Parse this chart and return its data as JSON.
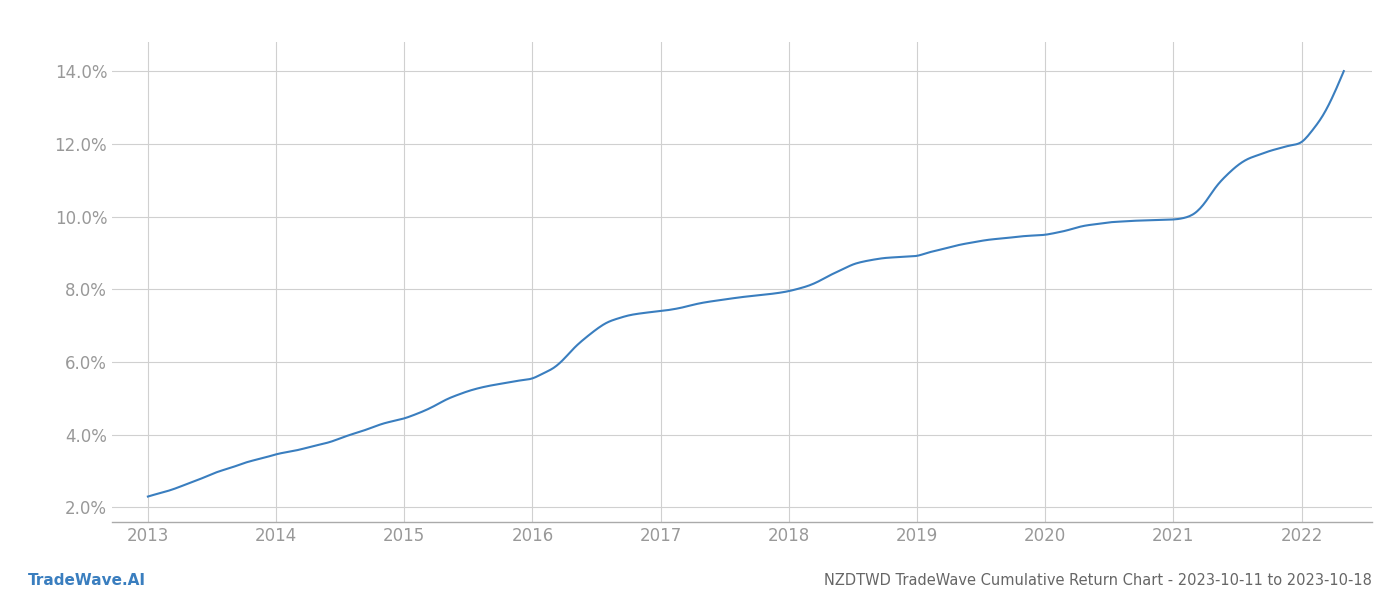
{
  "title": "NZDTWD TradeWave Cumulative Return Chart - 2023-10-11 to 2023-10-18",
  "watermark": "TradeWave.AI",
  "x_years": [
    2013,
    2014,
    2015,
    2016,
    2017,
    2018,
    2019,
    2020,
    2021,
    2022
  ],
  "x_values": [
    2013.0,
    2013.08,
    2013.17,
    2013.25,
    2013.33,
    2013.42,
    2013.5,
    2013.58,
    2013.67,
    2013.75,
    2013.83,
    2013.92,
    2014.0,
    2014.08,
    2014.17,
    2014.25,
    2014.33,
    2014.42,
    2014.5,
    2014.58,
    2014.67,
    2014.75,
    2014.83,
    2014.92,
    2015.0,
    2015.08,
    2015.17,
    2015.25,
    2015.33,
    2015.42,
    2015.5,
    2015.58,
    2015.67,
    2015.75,
    2015.83,
    2015.92,
    2016.0,
    2016.08,
    2016.17,
    2016.25,
    2016.33,
    2016.42,
    2016.5,
    2016.58,
    2016.67,
    2016.75,
    2016.83,
    2016.92,
    2017.0,
    2017.08,
    2017.17,
    2017.25,
    2017.33,
    2017.42,
    2017.5,
    2017.58,
    2017.67,
    2017.75,
    2017.83,
    2017.92,
    2018.0,
    2018.08,
    2018.17,
    2018.25,
    2018.33,
    2018.42,
    2018.5,
    2018.58,
    2018.67,
    2018.75,
    2018.83,
    2018.92,
    2019.0,
    2019.08,
    2019.17,
    2019.25,
    2019.33,
    2019.42,
    2019.5,
    2019.58,
    2019.67,
    2019.75,
    2019.83,
    2019.92,
    2020.0,
    2020.08,
    2020.17,
    2020.25,
    2020.33,
    2020.42,
    2020.5,
    2020.58,
    2020.67,
    2020.75,
    2020.83,
    2020.92,
    2021.0,
    2021.08,
    2021.17,
    2021.25,
    2021.33,
    2021.42,
    2021.5,
    2021.58,
    2021.67,
    2021.75,
    2021.83,
    2021.92,
    2022.0,
    2022.08,
    2022.17,
    2022.25,
    2022.33
  ],
  "y_values": [
    2.3,
    2.38,
    2.47,
    2.57,
    2.68,
    2.8,
    2.92,
    3.02,
    3.12,
    3.22,
    3.3,
    3.38,
    3.46,
    3.52,
    3.58,
    3.65,
    3.72,
    3.8,
    3.9,
    4.0,
    4.1,
    4.2,
    4.3,
    4.38,
    4.45,
    4.55,
    4.68,
    4.82,
    4.97,
    5.1,
    5.2,
    5.28,
    5.35,
    5.4,
    5.45,
    5.5,
    5.55,
    5.68,
    5.85,
    6.1,
    6.4,
    6.68,
    6.9,
    7.08,
    7.2,
    7.28,
    7.33,
    7.37,
    7.4,
    7.44,
    7.5,
    7.57,
    7.63,
    7.68,
    7.72,
    7.76,
    7.8,
    7.83,
    7.86,
    7.9,
    7.95,
    8.02,
    8.12,
    8.25,
    8.4,
    8.55,
    8.68,
    8.76,
    8.82,
    8.86,
    8.88,
    8.9,
    8.92,
    9.0,
    9.08,
    9.15,
    9.22,
    9.28,
    9.33,
    9.37,
    9.4,
    9.43,
    9.46,
    9.48,
    9.5,
    9.55,
    9.62,
    9.7,
    9.76,
    9.8,
    9.84,
    9.86,
    9.88,
    9.89,
    9.9,
    9.91,
    9.92,
    9.96,
    10.1,
    10.4,
    10.8,
    11.15,
    11.4,
    11.58,
    11.7,
    11.8,
    11.88,
    11.96,
    12.05,
    12.35,
    12.8,
    13.35,
    14.0
  ],
  "line_color": "#3a7ebf",
  "line_width": 1.5,
  "background_color": "#ffffff",
  "grid_color": "#d0d0d0",
  "ylim": [
    1.6,
    14.8
  ],
  "xlim_min": 2012.72,
  "xlim_max": 2022.55,
  "yticks": [
    2.0,
    4.0,
    6.0,
    8.0,
    10.0,
    12.0,
    14.0
  ],
  "ytick_labels": [
    "2.0%",
    "4.0%",
    "6.0%",
    "8.0%",
    "10.0%",
    "12.0%",
    "14.0%"
  ],
  "axis_color": "#aaaaaa",
  "tick_color": "#999999",
  "title_color": "#666666",
  "title_fontsize": 10.5,
  "watermark_fontsize": 11,
  "watermark_color": "#3a7ebf"
}
